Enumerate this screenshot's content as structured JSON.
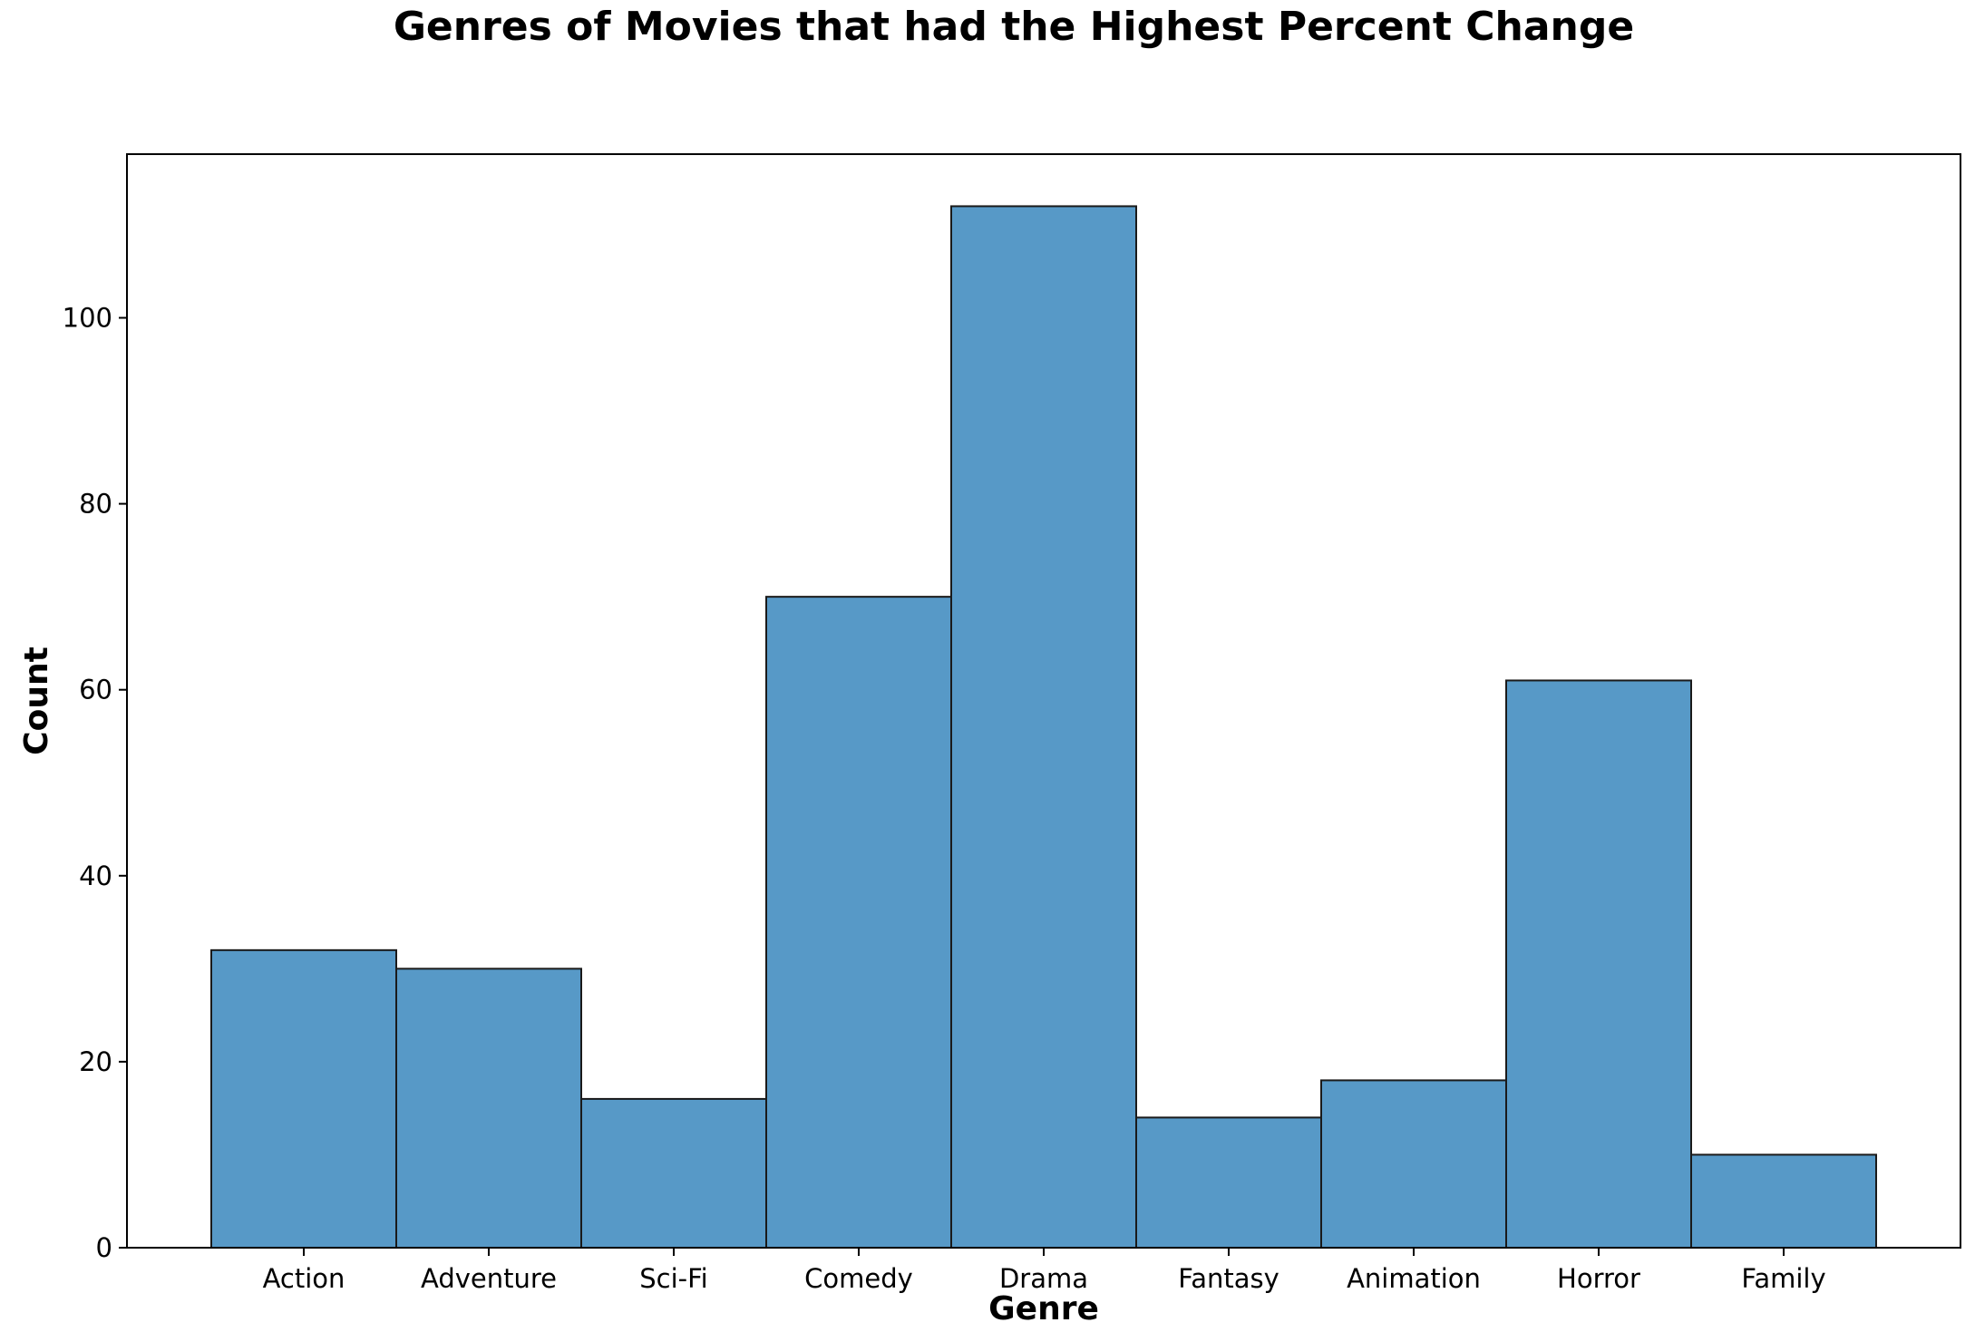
{
  "chart_data": {
    "type": "bar",
    "title": "Genres of Movies that had the Highest Percent Change",
    "xlabel": "Genre",
    "ylabel": "Count",
    "categories": [
      "Action",
      "Adventure",
      "Sci-Fi",
      "Comedy",
      "Drama",
      "Fantasy",
      "Animation",
      "Horror",
      "Family"
    ],
    "values": [
      32,
      30,
      16,
      70,
      112,
      14,
      18,
      61,
      10
    ],
    "yticks": [
      0,
      20,
      40,
      60,
      80,
      100
    ],
    "ylim": [
      0,
      117.6
    ],
    "grid": false,
    "bar_color": "#5799c7",
    "edge_color": "#1a1a1a"
  }
}
